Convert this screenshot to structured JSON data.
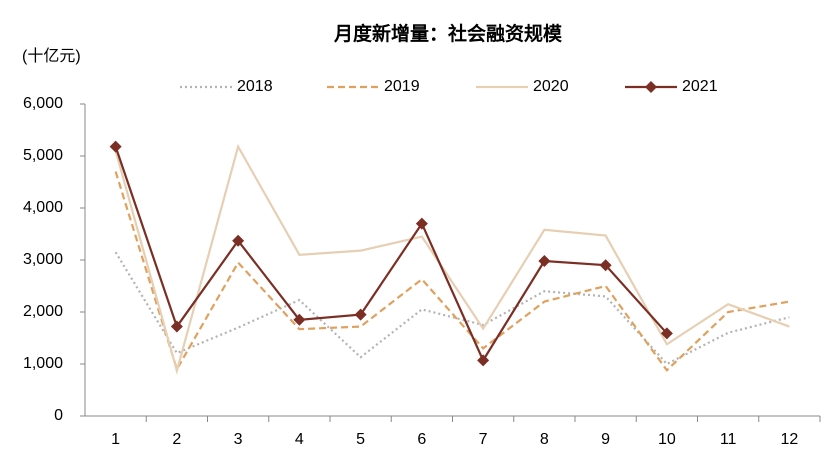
{
  "chart_data": {
    "type": "line",
    "title": "月度新增量：社会融资规模",
    "y_label": "(十亿元)",
    "categories": [
      "1",
      "2",
      "3",
      "4",
      "5",
      "6",
      "7",
      "8",
      "9",
      "10",
      "11",
      "12"
    ],
    "series": [
      {
        "name": "2018",
        "color": "#b3b3b3",
        "style": "dotted",
        "values": [
          3150,
          1210,
          1700,
          2230,
          1130,
          2050,
          1750,
          2400,
          2300,
          1000,
          1600,
          1900
        ]
      },
      {
        "name": "2019",
        "color": "#e0a15e",
        "style": "dashed",
        "values": [
          4700,
          900,
          2950,
          1670,
          1720,
          2630,
          1300,
          2200,
          2500,
          880,
          2000,
          2200
        ]
      },
      {
        "name": "2020",
        "color": "#e6cfb3",
        "style": "solid",
        "values": [
          5100,
          870,
          5180,
          3100,
          3180,
          3450,
          1680,
          3580,
          3470,
          1380,
          2150,
          1720
        ]
      },
      {
        "name": "2021",
        "color": "#7b2f24",
        "style": "solid",
        "marker": "diamond",
        "values": [
          5180,
          1720,
          3370,
          1850,
          1950,
          3700,
          1070,
          2980,
          2900,
          1590,
          null,
          null
        ]
      }
    ],
    "ylim": [
      0,
      6000
    ],
    "yticks": [
      0,
      {
        "value": 1000,
        "label": "1,000"
      },
      {
        "value": 2000,
        "label": "2,000"
      },
      {
        "value": 3000,
        "label": "3,000"
      },
      {
        "value": 4000,
        "label": "4,000"
      },
      {
        "value": 5000,
        "label": "5,000"
      },
      {
        "value": 6000,
        "label": "6,000"
      }
    ],
    "legend": "top"
  }
}
